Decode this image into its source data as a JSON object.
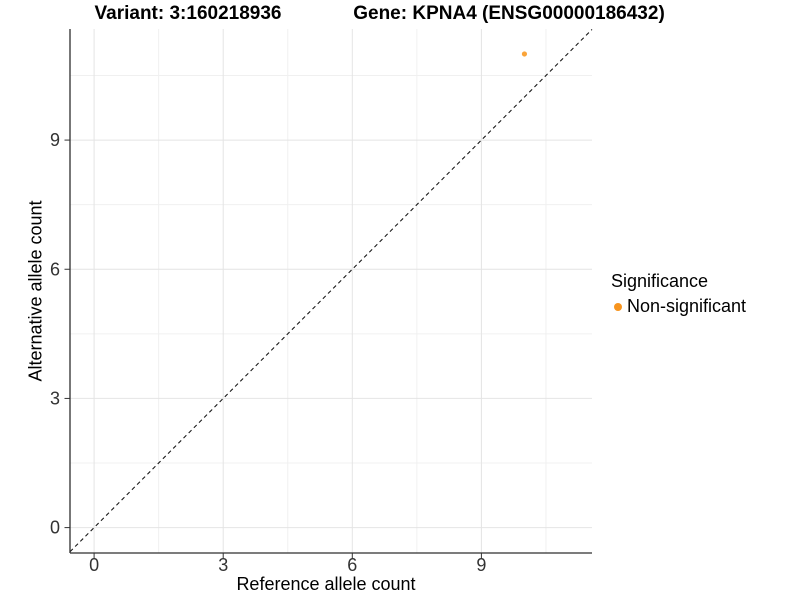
{
  "chart_data": {
    "type": "scatter",
    "title_left": "Variant: 3:160218936",
    "title_right": "Gene: KPNA4 (ENSG00000186432)",
    "xlabel": "Reference allele count",
    "ylabel": "Alternative allele count",
    "xlim": [
      -0.56,
      11.57
    ],
    "ylim": [
      -0.59,
      11.58
    ],
    "x_ticks": [
      0,
      3,
      6,
      9
    ],
    "y_ticks": [
      0,
      3,
      6,
      9
    ],
    "x_minor_ticks": [
      1.5,
      4.5,
      7.5,
      10.5
    ],
    "y_minor_ticks": [
      1.5,
      4.5,
      7.5,
      10.5
    ],
    "grid": "major-and-minor",
    "reference_line": {
      "kind": "identity",
      "style": "dashed",
      "color": "#1a1a1a"
    },
    "points": [
      {
        "x": 10,
        "y": 11,
        "series": "Non-significant"
      }
    ],
    "series_colors": {
      "Non-significant": "#FAA43A"
    },
    "legend": {
      "title": "Significance",
      "position": "right",
      "entries": [
        {
          "label": "Non-significant",
          "color": "#F7941E"
        }
      ]
    },
    "colors": {
      "grid_major": "#E4E4E4",
      "grid_minor": "#F0F0F0",
      "axis_line": "#2e2e2e",
      "tick_mark": "#333333",
      "tick_label": "#333333"
    }
  }
}
